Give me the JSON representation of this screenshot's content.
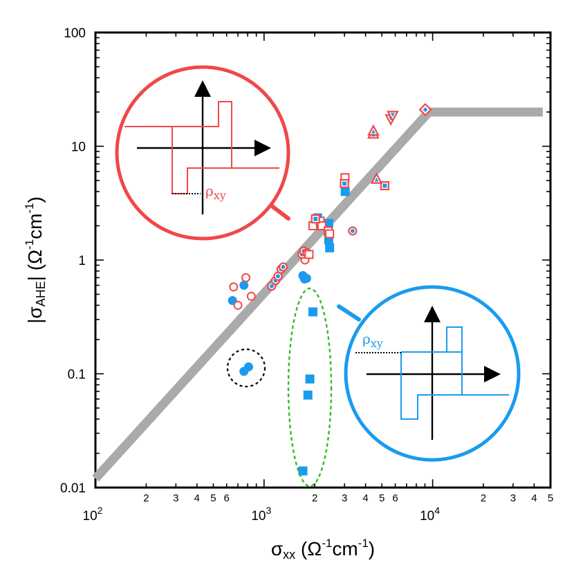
{
  "chart_data": {
    "type": "scatter",
    "x_scale": "log",
    "y_scale": "log",
    "xlim": [
      100,
      50000
    ],
    "ylim": [
      0.01,
      100
    ],
    "xlabel": {
      "base": "σ",
      "sub": "xx",
      "unit_pre": " (Ω",
      "sup1": "-1",
      "unit_mid": "cm",
      "sup2": "-1",
      "unit_post": ")"
    },
    "ylabel": {
      "pre": "|σ",
      "sub": "AHE",
      "mid": "| (Ω",
      "sup1": "-1",
      "unit_mid": "cm",
      "sup2": "-1",
      "post": ")"
    },
    "x_major_ticks": [
      {
        "value": 100,
        "base": "10",
        "exp": "2"
      },
      {
        "value": 1000,
        "base": "10",
        "exp": "3"
      },
      {
        "value": 10000,
        "base": "10",
        "exp": "4"
      }
    ],
    "x_minor_labels": [
      {
        "value": 200,
        "label": "2"
      },
      {
        "value": 300,
        "label": "3"
      },
      {
        "value": 400,
        "label": "4"
      },
      {
        "value": 500,
        "label": "5"
      },
      {
        "value": 600,
        "label": "6"
      },
      {
        "value": 2000,
        "label": "2"
      },
      {
        "value": 3000,
        "label": "3"
      },
      {
        "value": 4000,
        "label": "4"
      },
      {
        "value": 5000,
        "label": "5"
      },
      {
        "value": 6000,
        "label": "6"
      },
      {
        "value": 20000,
        "label": "2"
      },
      {
        "value": 30000,
        "label": "3"
      },
      {
        "value": 40000,
        "label": "4"
      },
      {
        "value": 50000,
        "label": "5"
      }
    ],
    "y_major_ticks": [
      {
        "value": 0.01,
        "label": "0.01"
      },
      {
        "value": 0.1,
        "label": "0.1"
      },
      {
        "value": 1,
        "label": "1"
      },
      {
        "value": 10,
        "label": "10"
      },
      {
        "value": 100,
        "label": "100"
      }
    ],
    "trend_line": {
      "name": "scaling guide",
      "color": "#aaaaaa",
      "points": [
        [
          100,
          0.012
        ],
        [
          9500,
          20
        ],
        [
          45000,
          20
        ]
      ]
    },
    "series": [
      {
        "name": "blue filled circles",
        "marker": "circle",
        "fill": "#1a9bee",
        "stroke": "#1a9bee",
        "points": [
          [
            650,
            0.44
          ],
          [
            760,
            0.6
          ],
          [
            760,
            0.105
          ],
          [
            810,
            0.115
          ],
          [
            1700,
            0.73
          ],
          [
            1740,
            0.68
          ],
          [
            1790,
            0.69
          ]
        ]
      },
      {
        "name": "blue filled squares",
        "marker": "square",
        "fill": "#1a9bee",
        "stroke": "#1a9bee",
        "points": [
          [
            1950,
            0.35
          ],
          [
            1870,
            0.09
          ],
          [
            1820,
            0.065
          ],
          [
            1700,
            0.014
          ],
          [
            2080,
            2.35
          ],
          [
            2420,
            2.1
          ],
          [
            2420,
            1.5
          ],
          [
            2450,
            1.28
          ],
          [
            3030,
            4.0
          ]
        ]
      },
      {
        "name": "red open circles",
        "marker": "circle",
        "fill": "none",
        "stroke": "#f04848",
        "points": [
          [
            660,
            0.58
          ],
          [
            780,
            0.7
          ],
          [
            700,
            0.4
          ],
          [
            840,
            0.48
          ],
          [
            1750,
            1.0
          ]
        ]
      },
      {
        "name": "red circles with blue core",
        "marker": "circle-dot",
        "fill": "#1a9bee",
        "stroke": "#f04848",
        "points": [
          [
            1110,
            0.59
          ],
          [
            1170,
            0.66
          ],
          [
            1210,
            0.72
          ],
          [
            1260,
            0.83
          ],
          [
            1300,
            0.87
          ],
          [
            1680,
            1.12
          ],
          [
            1720,
            1.2
          ],
          [
            1800,
            1.16
          ],
          [
            3350,
            1.8
          ]
        ]
      },
      {
        "name": "red open squares",
        "marker": "square",
        "fill": "none",
        "stroke": "#f04848",
        "points": [
          [
            1850,
            1.12
          ],
          [
            1950,
            2.0
          ],
          [
            2150,
            2.2
          ],
          [
            2200,
            2.0
          ],
          [
            2400,
            1.8
          ],
          [
            2450,
            1.7
          ],
          [
            3020,
            5.3
          ]
        ]
      },
      {
        "name": "red squares with blue core",
        "marker": "square-dot",
        "fill": "#1a9bee",
        "stroke": "#f04848",
        "points": [
          [
            3000,
            4.7
          ],
          [
            2020,
            2.3
          ],
          [
            5200,
            4.5
          ]
        ]
      },
      {
        "name": "red up triangles",
        "marker": "triangle-up",
        "fill": "#1a9bee",
        "stroke": "#f04848",
        "points": [
          [
            4450,
            12.7
          ],
          [
            4450,
            13.5
          ],
          [
            4650,
            5.1
          ]
        ]
      },
      {
        "name": "red down triangles",
        "marker": "triangle-down",
        "fill": "#1a9bee",
        "stroke": "#f04848",
        "points": [
          [
            5650,
            17.5
          ],
          [
            5800,
            18.8
          ]
        ]
      },
      {
        "name": "red diamonds",
        "marker": "diamond",
        "fill": "#1a9bee",
        "stroke": "#f04848",
        "points": [
          [
            9050,
            21.0
          ]
        ]
      }
    ],
    "annotations": {
      "red_inset": {
        "label": "ρ",
        "sub": "xy",
        "color": "#f04848",
        "position": "upper-left"
      },
      "blue_inset": {
        "label": "ρ",
        "sub": "xy",
        "color": "#1a9bee",
        "position": "lower-right"
      },
      "black_dashed_circle": {
        "color": "#000000",
        "encloses": "two blue circles near σxx ≈ 800"
      },
      "green_dashed_ellipse": {
        "color": "#33bb22",
        "encloses": "blue squares near σxx ≈ 1800"
      }
    }
  }
}
